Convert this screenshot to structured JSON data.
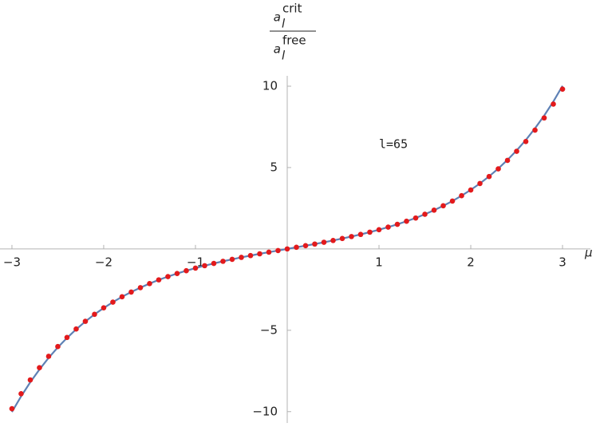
{
  "chart_data": {
    "type": "scatter_line",
    "ylabel": {
      "numerator": {
        "base": "a",
        "sub": "l",
        "sup": "crit"
      },
      "denominator": {
        "base": "a",
        "sub": "l",
        "sup": "free"
      }
    },
    "xlabel": "μ",
    "annotation": "l=65",
    "x": [
      -3,
      -2.9,
      -2.8,
      -2.7,
      -2.6,
      -2.5,
      -2.4,
      -2.3,
      -2.2,
      -2.1,
      -2,
      -1.9,
      -1.8,
      -1.7,
      -1.6,
      -1.5,
      -1.4,
      -1.3,
      -1.2,
      -1.1,
      -1,
      -0.9,
      -0.8,
      -0.7,
      -0.6,
      -0.5,
      -0.4,
      -0.3,
      -0.2,
      -0.1,
      0,
      0.1,
      0.2,
      0.3,
      0.4,
      0.5,
      0.6,
      0.7,
      0.8,
      0.9,
      1,
      1.1,
      1.2,
      1.3,
      1.4,
      1.5,
      1.6,
      1.7,
      1.8,
      1.9,
      2,
      2.1,
      2.2,
      2.3,
      2.4,
      2.5,
      2.6,
      2.7,
      2.8,
      2.9,
      3
    ],
    "series": [
      {
        "style": "line",
        "color": "#5e81b5",
        "values": [
          -10.02,
          -9.06,
          -8.19,
          -7.41,
          -6.69,
          -6.05,
          -5.47,
          -4.94,
          -4.46,
          -4.02,
          -3.63,
          -3.27,
          -2.94,
          -2.65,
          -2.38,
          -2.13,
          -1.9,
          -1.7,
          -1.51,
          -1.34,
          -1.18,
          -1.03,
          -0.89,
          -0.76,
          -0.64,
          -0.52,
          -0.41,
          -0.3,
          -0.2,
          -0.1,
          0,
          0.1,
          0.2,
          0.3,
          0.41,
          0.52,
          0.64,
          0.76,
          0.89,
          1.03,
          1.18,
          1.34,
          1.51,
          1.7,
          1.9,
          2.13,
          2.38,
          2.65,
          2.94,
          3.27,
          3.63,
          4.02,
          4.46,
          4.94,
          5.47,
          6.05,
          6.69,
          7.41,
          8.19,
          9.06,
          10.02
        ]
      },
      {
        "style": "points",
        "color": "#e31a1c",
        "values": [
          -9.82,
          -8.9,
          -8.05,
          -7.3,
          -6.6,
          -6,
          -5.44,
          -4.92,
          -4.45,
          -4.02,
          -3.62,
          -3.27,
          -2.94,
          -2.65,
          -2.38,
          -2.13,
          -1.9,
          -1.7,
          -1.51,
          -1.34,
          -1.18,
          -1.03,
          -0.89,
          -0.76,
          -0.64,
          -0.52,
          -0.41,
          -0.3,
          -0.2,
          -0.1,
          0,
          0.1,
          0.2,
          0.3,
          0.41,
          0.52,
          0.64,
          0.76,
          0.89,
          1.03,
          1.18,
          1.34,
          1.51,
          1.7,
          1.9,
          2.13,
          2.38,
          2.65,
          2.94,
          3.27,
          3.62,
          4.02,
          4.45,
          4.92,
          5.44,
          6,
          6.6,
          7.3,
          8.05,
          8.9,
          9.82
        ]
      }
    ],
    "xlim": [
      -3.13,
      3.13
    ],
    "ylim": [
      -10.6,
      11
    ],
    "xticks": [
      {
        "value": -3,
        "label": "−3"
      },
      {
        "value": -2,
        "label": "−2"
      },
      {
        "value": -1,
        "label": "−1"
      },
      1,
      2,
      3
    ],
    "yticks": [
      {
        "value": -10,
        "label": "−10"
      },
      {
        "value": -5,
        "label": "−5"
      },
      5,
      10
    ]
  }
}
